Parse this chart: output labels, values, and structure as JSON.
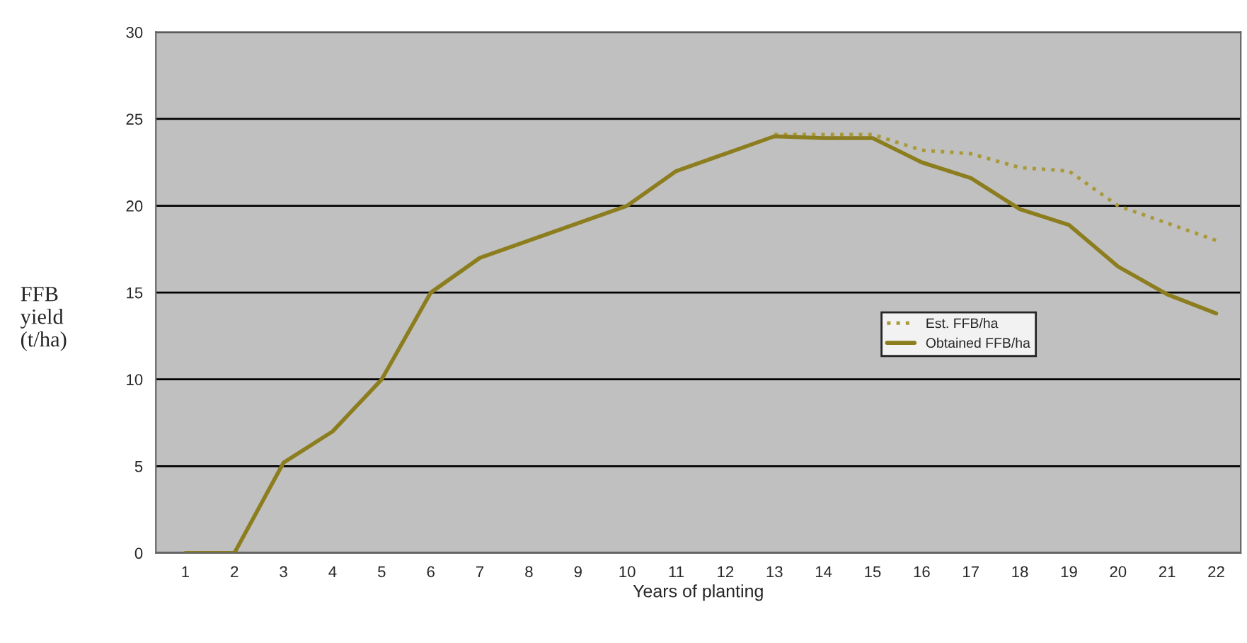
{
  "chart_data": {
    "type": "line",
    "xlabel": "Years of planting",
    "ylabel": "FFB\nyield\n(t/ha)",
    "categories": [
      "1",
      "2",
      "3",
      "4",
      "5",
      "6",
      "7",
      "8",
      "9",
      "10",
      "11",
      "12",
      "13",
      "14",
      "15",
      "16",
      "17",
      "18",
      "19",
      "20",
      "21",
      "22"
    ],
    "series": [
      {
        "name": "Est. FFB/ha",
        "color": "#a89a3a",
        "line_style": "dotted",
        "values": [
          null,
          null,
          null,
          null,
          null,
          null,
          null,
          null,
          null,
          null,
          null,
          null,
          24.1,
          24.1,
          24.1,
          23.2,
          23,
          22.2,
          22,
          20,
          19,
          18
        ]
      },
      {
        "name": "Obtained FFB/ha",
        "color": "#8c7d1e",
        "line_style": "solid",
        "values": [
          0,
          0,
          5.2,
          7,
          10,
          15,
          17,
          18,
          19,
          20,
          22,
          23,
          24,
          23.9,
          23.9,
          22.5,
          21.6,
          19.8,
          18.9,
          16.5,
          14.9,
          13.8
        ]
      }
    ],
    "ylim": [
      0,
      30
    ],
    "yticks": [
      0,
      5,
      10,
      15,
      20,
      25,
      30
    ],
    "grid": "y",
    "legend": "center right"
  }
}
